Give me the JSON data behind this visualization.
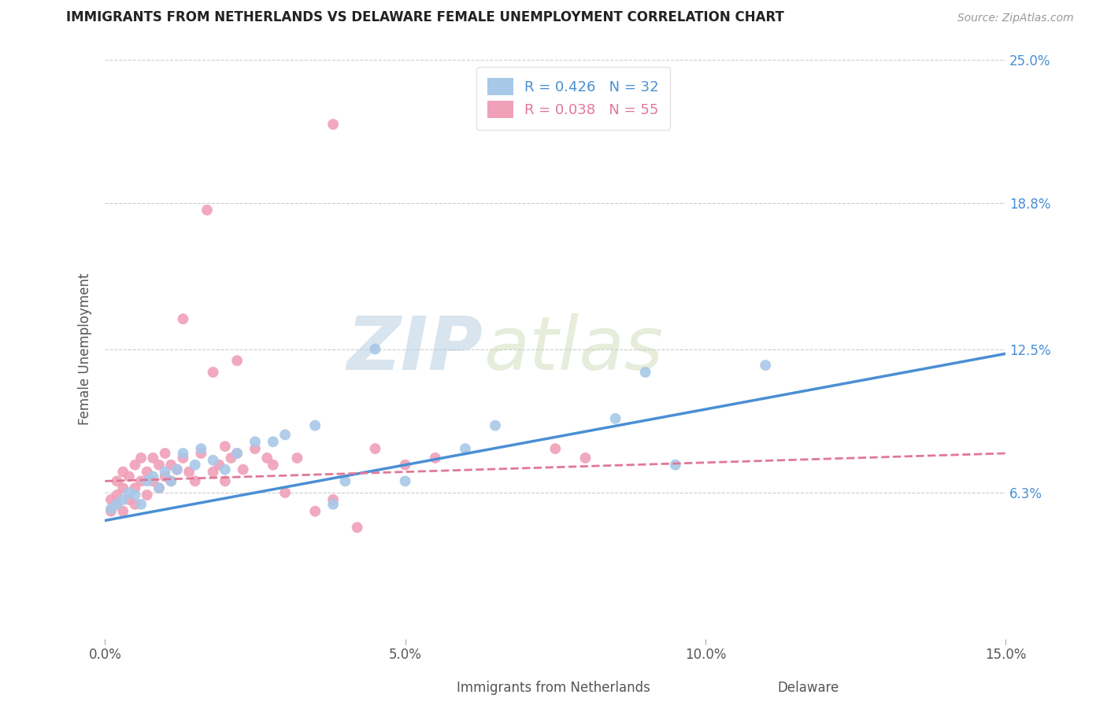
{
  "title": "IMMIGRANTS FROM NETHERLANDS VS DELAWARE FEMALE UNEMPLOYMENT CORRELATION CHART",
  "source": "Source: ZipAtlas.com",
  "ylabel": "Female Unemployment",
  "xlim": [
    0.0,
    0.15
  ],
  "ylim": [
    0.0,
    0.25
  ],
  "yticks": [
    0.063,
    0.125,
    0.188,
    0.25
  ],
  "ytick_labels": [
    "6.3%",
    "12.5%",
    "18.8%",
    "25.0%"
  ],
  "xticks": [
    0.0,
    0.05,
    0.1,
    0.15
  ],
  "xtick_labels": [
    "0.0%",
    "5.0%",
    "10.0%",
    "15.0%"
  ],
  "blue_color": "#a8c8e8",
  "blue_line_color": "#4a8fd4",
  "pink_color": "#f0a0b8",
  "pink_line_color": "#e07898",
  "legend_R1": "R = 0.426",
  "legend_N1": "N = 32",
  "legend_R2": "R = 0.038",
  "legend_N2": "N = 55",
  "watermark_zip": "ZIP",
  "watermark_atlas": "atlas",
  "blue_R": 0.426,
  "blue_N": 32,
  "pink_R": 0.038,
  "pink_N": 55,
  "blue_x": [
    0.001,
    0.002,
    0.003,
    0.004,
    0.005,
    0.006,
    0.007,
    0.008,
    0.009,
    0.01,
    0.011,
    0.012,
    0.013,
    0.015,
    0.016,
    0.018,
    0.02,
    0.022,
    0.025,
    0.028,
    0.03,
    0.035,
    0.038,
    0.04,
    0.045,
    0.05,
    0.06,
    0.065,
    0.085,
    0.09,
    0.095,
    0.11
  ],
  "blue_y": [
    0.056,
    0.058,
    0.06,
    0.063,
    0.062,
    0.058,
    0.068,
    0.07,
    0.065,
    0.072,
    0.068,
    0.073,
    0.08,
    0.075,
    0.082,
    0.077,
    0.073,
    0.08,
    0.085,
    0.085,
    0.088,
    0.092,
    0.058,
    0.068,
    0.125,
    0.068,
    0.082,
    0.092,
    0.095,
    0.115,
    0.075,
    0.118
  ],
  "pink_x": [
    0.001,
    0.001,
    0.002,
    0.002,
    0.002,
    0.003,
    0.003,
    0.003,
    0.004,
    0.004,
    0.005,
    0.005,
    0.005,
    0.006,
    0.006,
    0.007,
    0.007,
    0.008,
    0.008,
    0.009,
    0.009,
    0.01,
    0.01,
    0.011,
    0.011,
    0.012,
    0.013,
    0.014,
    0.015,
    0.016,
    0.017,
    0.018,
    0.019,
    0.02,
    0.021,
    0.022,
    0.023,
    0.025,
    0.027,
    0.028,
    0.03,
    0.032,
    0.035,
    0.038,
    0.042,
    0.045,
    0.05,
    0.055,
    0.075,
    0.08,
    0.013,
    0.018,
    0.02,
    0.022,
    0.038
  ],
  "pink_y": [
    0.06,
    0.055,
    0.068,
    0.062,
    0.058,
    0.072,
    0.065,
    0.055,
    0.07,
    0.06,
    0.075,
    0.065,
    0.058,
    0.078,
    0.068,
    0.072,
    0.062,
    0.078,
    0.068,
    0.075,
    0.065,
    0.08,
    0.07,
    0.068,
    0.075,
    0.073,
    0.078,
    0.072,
    0.068,
    0.08,
    0.185,
    0.072,
    0.075,
    0.068,
    0.078,
    0.08,
    0.073,
    0.082,
    0.078,
    0.075,
    0.063,
    0.078,
    0.055,
    0.06,
    0.048,
    0.082,
    0.075,
    0.078,
    0.082,
    0.078,
    0.138,
    0.115,
    0.083,
    0.12,
    0.222
  ],
  "blue_trend": [
    0.0,
    0.15
  ],
  "blue_trend_y": [
    0.051,
    0.123
  ],
  "pink_trend": [
    0.0,
    0.15
  ],
  "pink_trend_y": [
    0.068,
    0.08
  ]
}
